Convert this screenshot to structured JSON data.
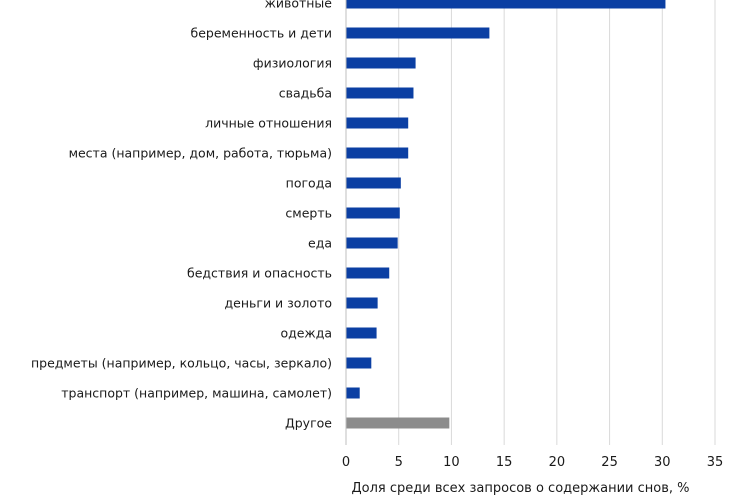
{
  "chart_data": {
    "type": "bar",
    "orientation": "horizontal",
    "categories": [
      "животные",
      "беременность и дети",
      "физиология",
      "свадьба",
      "личные отношения",
      "места (например, дом, работа,  тюрьма)",
      "погода",
      "смерть",
      "еда",
      "бедствия  и опасность",
      "деньги и золото",
      "одежда",
      "предметы (например, кольцо, часы,  зеркало)",
      "транспорт  (например, машина,  самолет)",
      "Другое"
    ],
    "values": [
      30.3,
      13.6,
      6.6,
      6.4,
      5.9,
      5.9,
      5.2,
      5.1,
      4.9,
      4.1,
      3.0,
      2.9,
      2.4,
      1.3,
      9.8
    ],
    "bar_colors": [
      "#0b3fa3",
      "#0b3fa3",
      "#0b3fa3",
      "#0b3fa3",
      "#0b3fa3",
      "#0b3fa3",
      "#0b3fa3",
      "#0b3fa3",
      "#0b3fa3",
      "#0b3fa3",
      "#0b3fa3",
      "#0b3fa3",
      "#0b3fa3",
      "#0b3fa3",
      "#8c8c8c"
    ],
    "xlim": [
      0,
      35
    ],
    "xticks": [
      0,
      5,
      10,
      15,
      20,
      25,
      30,
      35
    ],
    "xlabel": "Доля среди всех запросов о содержании снов, %",
    "title": "",
    "grid": "vertical"
  }
}
